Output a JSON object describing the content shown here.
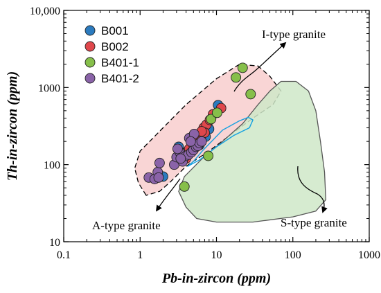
{
  "chart_data": {
    "type": "scatter",
    "xlabel": "Pb-in-zircon (ppm)",
    "ylabel": "Th-in-zircon (ppm)",
    "xscale": "log",
    "yscale": "log",
    "xlim": [
      0.1,
      1000
    ],
    "ylim": [
      10,
      10000
    ],
    "x_ticks": [
      0.1,
      1,
      10,
      100,
      1000
    ],
    "x_tick_labels": [
      "0.1",
      "1",
      "10",
      "100",
      "1000"
    ],
    "y_ticks": [
      10,
      100,
      1000,
      10000
    ],
    "y_tick_labels": [
      "10",
      "100",
      "1000",
      "10,000"
    ],
    "grid": false,
    "legend_position": "top-left",
    "series": [
      {
        "name": "B001",
        "color": "#2b7bbf",
        "points": [
          [
            3.2,
            170
          ],
          [
            4.2,
            150
          ],
          [
            5.0,
            240
          ],
          [
            5.6,
            210
          ],
          [
            6.5,
            250
          ],
          [
            7.2,
            230
          ],
          [
            8.0,
            290
          ],
          [
            10.5,
            590
          ],
          [
            2.0,
            70
          ],
          [
            4.8,
            190
          ],
          [
            5.3,
            170
          ],
          [
            6.0,
            180
          ]
        ]
      },
      {
        "name": "B002",
        "color": "#e0474c",
        "points": [
          [
            3.6,
            140
          ],
          [
            4.4,
            160
          ],
          [
            5.0,
            180
          ],
          [
            6.2,
            230
          ],
          [
            6.8,
            300
          ],
          [
            7.4,
            330
          ],
          [
            8.2,
            380
          ],
          [
            9.0,
            450
          ],
          [
            11.5,
            540
          ],
          [
            4.0,
            120
          ],
          [
            5.8,
            200
          ],
          [
            7.0,
            260
          ],
          [
            6.4,
            270
          ]
        ]
      },
      {
        "name": "B401-1",
        "color": "#86bf4a",
        "points": [
          [
            3.8,
            52
          ],
          [
            7.8,
            130
          ],
          [
            8.5,
            390
          ],
          [
            10.2,
            470
          ],
          [
            18,
            1350
          ],
          [
            22,
            1800
          ],
          [
            28,
            820
          ]
        ]
      },
      {
        "name": "B401-2",
        "color": "#8a63a8",
        "points": [
          [
            1.3,
            68
          ],
          [
            1.55,
            65
          ],
          [
            1.7,
            80
          ],
          [
            1.8,
            105
          ],
          [
            1.75,
            68
          ],
          [
            2.8,
            100
          ],
          [
            3.0,
            125
          ],
          [
            3.3,
            145
          ],
          [
            3.6,
            110
          ],
          [
            4.0,
            130
          ],
          [
            4.3,
            135
          ],
          [
            4.7,
            145
          ],
          [
            5.0,
            155
          ],
          [
            5.4,
            170
          ],
          [
            5.7,
            175
          ],
          [
            6.0,
            190
          ],
          [
            6.4,
            200
          ],
          [
            4.4,
            220
          ],
          [
            5.1,
            250
          ],
          [
            3.4,
            120
          ],
          [
            3.1,
            160
          ],
          [
            4.6,
            200
          ]
        ]
      }
    ],
    "fields": [
      {
        "name": "A-type granite / I-type granite field",
        "fill": "#f8d0d0",
        "stroke": "#000000",
        "dashed": true,
        "outline": [
          [
            1.2,
            40
          ],
          [
            0.95,
            58
          ],
          [
            0.85,
            90
          ],
          [
            1.0,
            150
          ],
          [
            2.0,
            300
          ],
          [
            4.0,
            600
          ],
          [
            10,
            1300
          ],
          [
            20,
            2000
          ],
          [
            35,
            1900
          ],
          [
            50,
            1400
          ],
          [
            70,
            900
          ],
          [
            55,
            600
          ],
          [
            30,
            400
          ],
          [
            15,
            240
          ],
          [
            8,
            150
          ],
          [
            4,
            95
          ],
          [
            2.5,
            60
          ],
          [
            1.8,
            45
          ]
        ]
      },
      {
        "name": "S-type granite field",
        "fill": "#cfe8c8",
        "stroke": "#555555",
        "dashed": false,
        "outline": [
          [
            5.5,
            20
          ],
          [
            4.0,
            28
          ],
          [
            3.2,
            45
          ],
          [
            3.8,
            70
          ],
          [
            6.5,
            120
          ],
          [
            12,
            200
          ],
          [
            22,
            340
          ],
          [
            35,
            600
          ],
          [
            50,
            900
          ],
          [
            70,
            1200
          ],
          [
            110,
            1200
          ],
          [
            160,
            900
          ],
          [
            200,
            500
          ],
          [
            230,
            200
          ],
          [
            260,
            80
          ],
          [
            270,
            35
          ],
          [
            200,
            25
          ],
          [
            100,
            21
          ],
          [
            30,
            18
          ],
          [
            10,
            18
          ]
        ]
      },
      {
        "name": "Inner field",
        "fill": "none",
        "stroke": "#1aa3e0",
        "dashed": false,
        "outline": [
          [
            5.0,
            110
          ],
          [
            6.5,
            150
          ],
          [
            12,
            280
          ],
          [
            20,
            370
          ],
          [
            26,
            410
          ],
          [
            30,
            380
          ],
          [
            27,
            300
          ],
          [
            17,
            240
          ],
          [
            10,
            170
          ],
          [
            6,
            115
          ],
          [
            4.2,
            95
          ]
        ]
      }
    ],
    "annotations": [
      {
        "text": "I-type granite",
        "x": 60,
        "y": 5000
      },
      {
        "text": "A-type granite",
        "x": 0.28,
        "y": 18
      },
      {
        "text": "S-type granite",
        "x": 80,
        "y": 20
      }
    ]
  }
}
